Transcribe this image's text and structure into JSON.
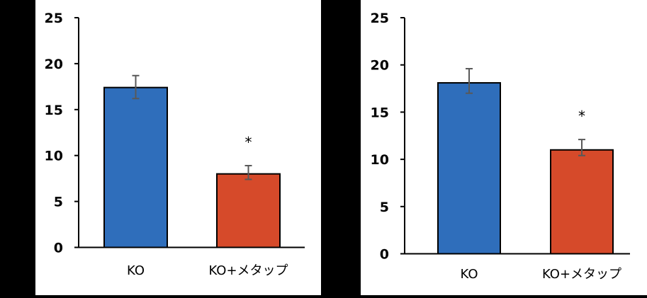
{
  "chart_data": [
    {
      "type": "bar",
      "title": "",
      "xlabel": "",
      "ylabel": "",
      "ylim": [
        0,
        25
      ],
      "yticks": [
        0,
        5,
        10,
        15,
        20,
        25
      ],
      "grid": false,
      "categories": [
        "KO",
        "KO+メタップ"
      ],
      "values": [
        17.4,
        8.0
      ],
      "error": [
        [
          16.2,
          18.7
        ],
        [
          7.4,
          8.9
        ]
      ],
      "colors": [
        "#2F6EBB",
        "#D64A2A"
      ],
      "annotations": [
        {
          "category": "KO+メタップ",
          "text": "*"
        }
      ]
    },
    {
      "type": "bar",
      "title": "",
      "xlabel": "",
      "ylabel": "",
      "ylim": [
        0,
        25
      ],
      "yticks": [
        0,
        5,
        10,
        15,
        20,
        25
      ],
      "grid": false,
      "categories": [
        "KO",
        "KO+メタップ"
      ],
      "values": [
        18.1,
        11.0
      ],
      "error": [
        [
          17.0,
          19.6
        ],
        [
          10.4,
          12.1
        ]
      ],
      "colors": [
        "#2F6EBB",
        "#D64A2A"
      ],
      "annotations": [
        {
          "category": "KO+メタップ",
          "text": "*"
        }
      ]
    }
  ]
}
